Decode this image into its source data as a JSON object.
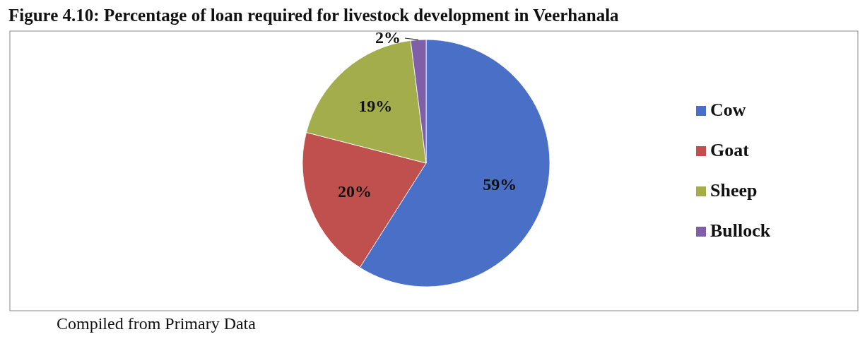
{
  "chart_data": {
    "type": "pie",
    "title": "Figure 4.10: Percentage of loan required for livestock development in Veerhanala",
    "categories": [
      "Cow",
      "Goat",
      "Sheep",
      "Bullock"
    ],
    "values": [
      59,
      20,
      19,
      2
    ],
    "value_labels": [
      "59%",
      "20%",
      "19%",
      "2%"
    ],
    "colors": [
      "#4a6fc7",
      "#c0504d",
      "#a3ad4c",
      "#7f5fa8"
    ],
    "legend": "right",
    "annotations": [
      "Compiled from Primary Data"
    ]
  }
}
